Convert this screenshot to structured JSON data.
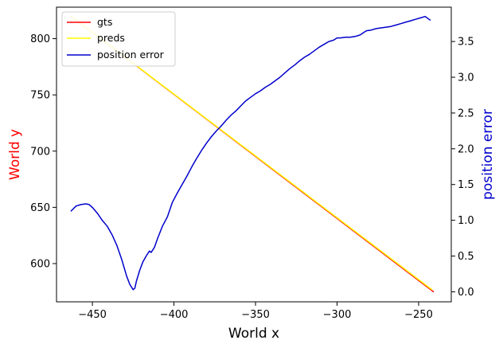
{
  "chart_data": {
    "type": "line",
    "xlabel": "World x",
    "ylabel_left": "World y",
    "ylabel_right": "position error",
    "ylabel_left_color": "#ff0000",
    "ylabel_right_color": "#0000cc",
    "xlim": [
      -472,
      -230
    ],
    "ylim_left": [
      566,
      828
    ],
    "ylim_right": [
      -0.14,
      3.98
    ],
    "x_ticks": [
      -450,
      -400,
      -350,
      -300,
      -250
    ],
    "x_tick_labels": [
      "−450",
      "−400",
      "−350",
      "−300",
      "−250"
    ],
    "y_left_ticks": [
      600,
      650,
      700,
      750,
      800
    ],
    "y_left_tick_labels": [
      "600",
      "650",
      "700",
      "750",
      "800"
    ],
    "y_right_ticks": [
      0.0,
      0.5,
      1.0,
      1.5,
      2.0,
      2.5,
      3.0,
      3.5
    ],
    "y_right_tick_labels": [
      "0.0",
      "0.5",
      "1.0",
      "1.5",
      "2.0",
      "2.5",
      "3.0",
      "3.5"
    ],
    "grid": false,
    "legend_position": "top-left",
    "series": [
      {
        "name": "gts",
        "axis": "left",
        "color": "#ff0000",
        "x": [
          -463,
          -241
        ],
        "y": [
          820,
          575
        ]
      },
      {
        "name": "preds",
        "axis": "left",
        "color": "#ffff00",
        "x": [
          -463,
          -242
        ],
        "y": [
          820,
          577
        ]
      },
      {
        "name": "position error",
        "axis": "right",
        "color": "#0000cc",
        "x": [
          -463,
          -460,
          -457,
          -454,
          -452,
          -450,
          -447,
          -444,
          -441,
          -438,
          -435,
          -432,
          -429,
          -427,
          -425,
          -424,
          -423,
          -421,
          -419,
          -417,
          -415,
          -414,
          -412,
          -410,
          -407,
          -404,
          -401,
          -398,
          -395,
          -392,
          -389,
          -386,
          -383,
          -380,
          -377,
          -374,
          -371,
          -368,
          -365,
          -362,
          -359,
          -356,
          -353,
          -350,
          -347,
          -344,
          -341,
          -338,
          -335,
          -332,
          -329,
          -326,
          -323,
          -320,
          -317,
          -314,
          -311,
          -308,
          -305,
          -302,
          -300,
          -298,
          -295,
          -292,
          -289,
          -286,
          -284,
          -282,
          -279,
          -276,
          -273,
          -270,
          -267,
          -264,
          -261,
          -258,
          -255,
          -252,
          -249,
          -246,
          -243
        ],
        "y": [
          1.13,
          1.2,
          1.22,
          1.23,
          1.22,
          1.18,
          1.1,
          1.0,
          0.92,
          0.8,
          0.65,
          0.45,
          0.22,
          0.1,
          0.03,
          0.05,
          0.15,
          0.3,
          0.42,
          0.5,
          0.57,
          0.55,
          0.62,
          0.75,
          0.92,
          1.05,
          1.25,
          1.38,
          1.5,
          1.62,
          1.75,
          1.87,
          1.98,
          2.08,
          2.17,
          2.25,
          2.32,
          2.4,
          2.47,
          2.53,
          2.6,
          2.67,
          2.72,
          2.77,
          2.81,
          2.86,
          2.9,
          2.95,
          3.0,
          3.06,
          3.12,
          3.17,
          3.23,
          3.28,
          3.32,
          3.37,
          3.42,
          3.46,
          3.5,
          3.52,
          3.55,
          3.55,
          3.56,
          3.56,
          3.57,
          3.59,
          3.62,
          3.65,
          3.66,
          3.68,
          3.69,
          3.7,
          3.71,
          3.73,
          3.75,
          3.77,
          3.79,
          3.81,
          3.83,
          3.85,
          3.8
        ]
      }
    ]
  }
}
